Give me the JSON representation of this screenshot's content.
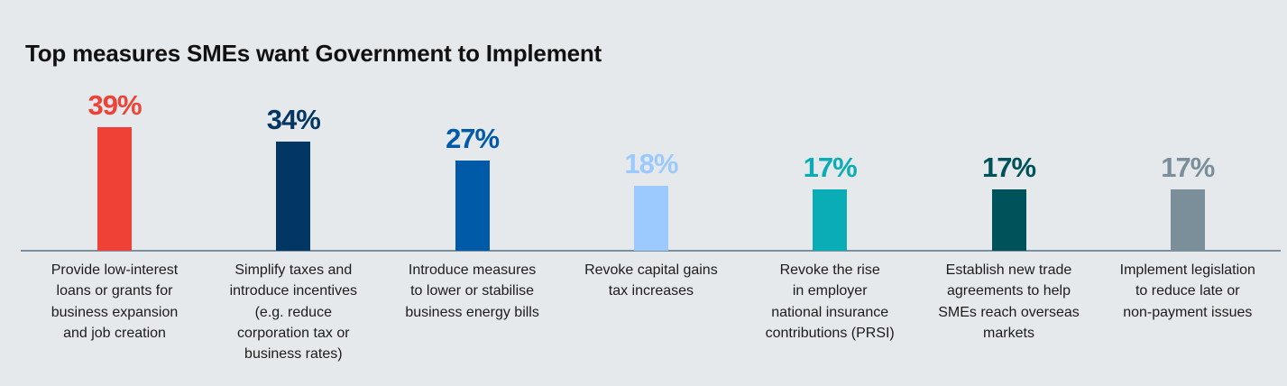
{
  "chart_data": {
    "type": "bar",
    "title": "Top measures SMEs want Government to Implement",
    "xlabel": "",
    "ylabel": "",
    "ylim": [
      0,
      40
    ],
    "grid": false,
    "categories": [
      [
        "Provide low-interest",
        "loans or grants for",
        "business expansion",
        "and job creation"
      ],
      [
        "Simplify taxes and",
        "introduce incentives",
        "(e.g. reduce",
        "corporation tax or",
        "business rates)"
      ],
      [
        "Introduce measures",
        "to lower or stabilise",
        "business energy bills"
      ],
      [
        "Revoke capital gains",
        "tax increases"
      ],
      [
        "Revoke the rise",
        "in employer",
        "national insurance",
        "contributions (PRSI)"
      ],
      [
        "Establish new trade",
        "agreements to help",
        "SMEs reach overseas",
        "markets"
      ],
      [
        "Implement legislation",
        "to reduce late or",
        "non-payment issues"
      ]
    ],
    "values": [
      39,
      34,
      27,
      18,
      17,
      17,
      17
    ],
    "data_labels": [
      "39%",
      "34%",
      "27%",
      "18%",
      "17%",
      "17%",
      "17%"
    ],
    "colors": [
      "#f04136",
      "#033763",
      "#005aa8",
      "#9ccaff",
      "#0aadb5",
      "#00525a",
      "#7b8f9b"
    ]
  }
}
